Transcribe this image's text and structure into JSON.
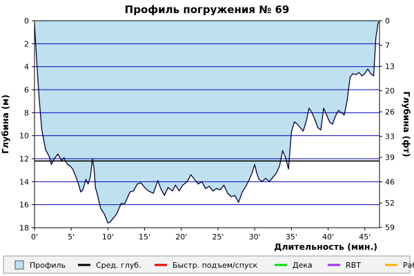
{
  "chart_data": {
    "type": "area",
    "title": "Профиль погружения № 69",
    "xlabel": "Длительность (мин.)",
    "ylabel": "Глубина (м)",
    "ylabel_right": "Глубина (фт)",
    "xlim": [
      0,
      47
    ],
    "ylim": [
      0,
      18
    ],
    "y_inverted": true,
    "x_ticks": [
      0,
      5,
      10,
      15,
      20,
      25,
      30,
      35,
      40,
      45
    ],
    "x_tick_labels": [
      "0'",
      "5'",
      "10'",
      "15'",
      "20'",
      "25'",
      "30'",
      "35'",
      "40'",
      "45'"
    ],
    "y_ticks": [
      0,
      2,
      4,
      6,
      8,
      10,
      12,
      14,
      16,
      18
    ],
    "y_tick_labels": [
      "0",
      "2",
      "4",
      "6",
      "8",
      "10",
      "12",
      "14",
      "16",
      "18"
    ],
    "y_right_ticks": [
      0,
      7,
      13,
      20,
      26,
      33,
      39,
      46,
      52,
      59
    ],
    "average_depth": 12.2,
    "grid": "horizontal",
    "colors": {
      "profile_fill": "#bfe0ef",
      "depth_line": "#000033",
      "grid": "#0000bb",
      "average_line": "#000000",
      "fast_ascent": "#ee0000",
      "deco": "#00dd00",
      "rbt": "#9933ff",
      "work": "#ffaa00"
    },
    "legend": [
      {
        "label": "Профиль",
        "kind": "box",
        "color": "#bfe0ef"
      },
      {
        "label": "Сред. глуб.",
        "kind": "line",
        "color": "#000000"
      },
      {
        "label": "Быстр. подъем/спуск",
        "kind": "line",
        "color": "#ee0000"
      },
      {
        "label": "Дека",
        "kind": "line",
        "color": "#00dd00"
      },
      {
        "label": "RBT",
        "kind": "line",
        "color": "#9933ff"
      },
      {
        "label": "Раб.",
        "kind": "line",
        "color": "#ffaa00"
      }
    ],
    "series": [
      {
        "x": [
          0,
          0.3,
          0.6,
          1,
          1.5,
          2,
          2.3,
          2.7,
          3.2,
          3.7,
          4,
          4.3,
          4.5,
          4.8,
          5.2,
          5.6,
          6,
          6.3,
          6.6,
          7,
          7.3,
          7.6,
          7.9,
          8.1,
          8.3,
          8.6,
          9,
          9.5,
          10,
          10.3,
          10.7,
          11.2,
          11.8,
          12.3,
          13,
          13.5,
          14,
          14.5,
          15,
          15.5,
          16.2,
          16.8,
          17.2,
          17.7,
          18.2,
          18.8,
          19.2,
          19.7,
          20.2,
          20.8,
          21.3,
          21.8,
          22.3,
          22.8,
          23.3,
          23.8,
          24.3,
          24.8,
          25.3,
          25.8,
          26.3,
          26.8,
          27.3,
          27.8,
          28.3,
          28.8,
          29.2,
          29.6,
          30,
          30.3,
          30.6,
          31,
          31.5,
          32,
          32.5,
          33,
          33.4,
          33.8,
          34.2,
          34.6,
          35,
          35.4,
          35.8,
          36.2,
          36.6,
          37,
          37.4,
          37.8,
          38.2,
          38.6,
          39,
          39.4,
          39.8,
          40.2,
          40.6,
          41,
          41.4,
          41.8,
          42.2,
          42.6,
          43,
          43.4,
          43.8,
          44.2,
          44.6,
          45,
          45.4,
          45.8,
          46.2,
          46.5,
          46.8,
          47
        ],
        "y": [
          0.3,
          3.5,
          6.5,
          9.5,
          11.2,
          11.8,
          12.5,
          12.0,
          11.6,
          12.2,
          11.9,
          12.3,
          12.5,
          12.6,
          12.9,
          13.5,
          14.2,
          14.9,
          14.7,
          13.8,
          14.2,
          13.6,
          12.0,
          12.8,
          14.5,
          15.2,
          16.3,
          16.8,
          17.6,
          17.5,
          17.2,
          16.8,
          15.9,
          15.9,
          14.9,
          14.8,
          14.2,
          14.1,
          14.5,
          14.8,
          15.0,
          13.9,
          14.6,
          15.2,
          14.5,
          14.8,
          14.3,
          14.8,
          14.3,
          14.0,
          13.4,
          13.8,
          14.2,
          14.0,
          14.6,
          14.4,
          14.8,
          14.6,
          14.7,
          14.3,
          15.0,
          15.3,
          15.2,
          15.8,
          14.9,
          14.4,
          13.9,
          13.3,
          12.5,
          13.3,
          13.8,
          14.0,
          13.7,
          14.0,
          13.6,
          13.2,
          12.6,
          11.3,
          11.9,
          12.9,
          9.7,
          8.8,
          9.0,
          9.3,
          9.6,
          8.8,
          7.6,
          8.0,
          8.6,
          9.3,
          9.5,
          7.6,
          8.2,
          8.8,
          9.0,
          8.3,
          7.8,
          8.0,
          8.2,
          6.9,
          4.9,
          4.6,
          4.7,
          4.5,
          4.8,
          4.6,
          4.2,
          4.6,
          4.8,
          1.5,
          0.2,
          0.1
        ]
      }
    ]
  }
}
